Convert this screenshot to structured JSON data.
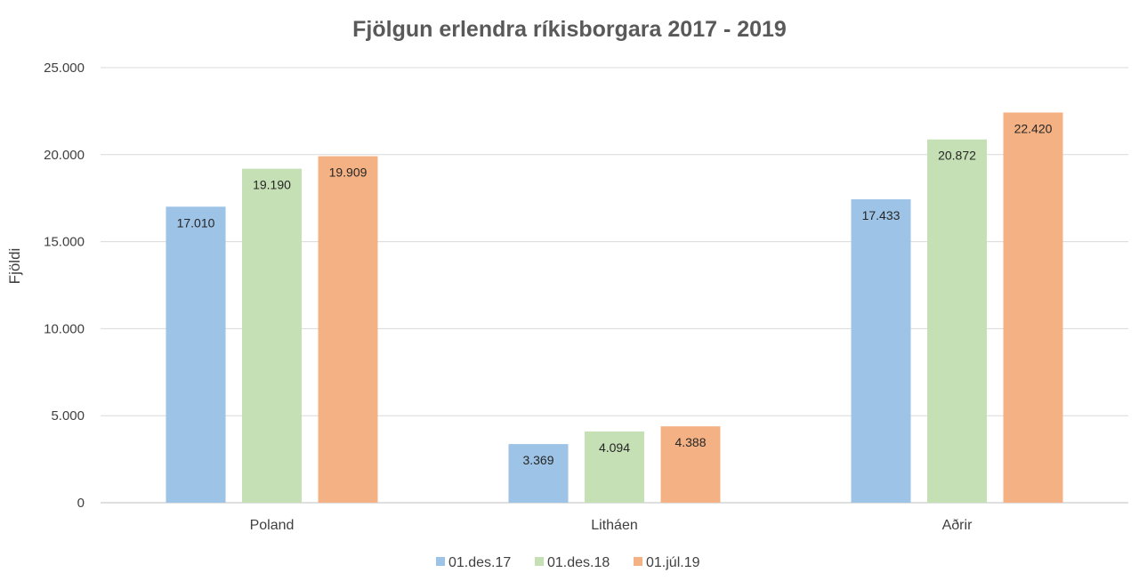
{
  "chart_data": {
    "type": "bar",
    "title": "Fjölgun erlendra ríkisborgara 2017 - 2019",
    "xlabel": "",
    "ylabel": "Fjöldi",
    "categories": [
      "Poland",
      "Litháen",
      "Aðrir"
    ],
    "series": [
      {
        "name": "01.des.17",
        "color": "#9dc3e6",
        "values": [
          17010,
          3369,
          17433
        ],
        "labels": [
          "17.010",
          "3.369",
          "17.433"
        ]
      },
      {
        "name": "01.des.18",
        "color": "#c5e0b4",
        "values": [
          19190,
          4094,
          20872
        ],
        "labels": [
          "19.190",
          "4.094",
          "20.872"
        ]
      },
      {
        "name": "01.júl.19",
        "color": "#f4b183",
        "values": [
          19909,
          4388,
          22420
        ],
        "labels": [
          "19.909",
          "4.388",
          "22.420"
        ]
      }
    ],
    "ylim": [
      0,
      25000
    ],
    "yticks": [
      0,
      5000,
      10000,
      15000,
      20000,
      25000
    ],
    "ytick_labels": [
      "0",
      "5.000",
      "10.000",
      "15.000",
      "20.000",
      "25.000"
    ],
    "grid": true,
    "legend_position": "bottom"
  }
}
